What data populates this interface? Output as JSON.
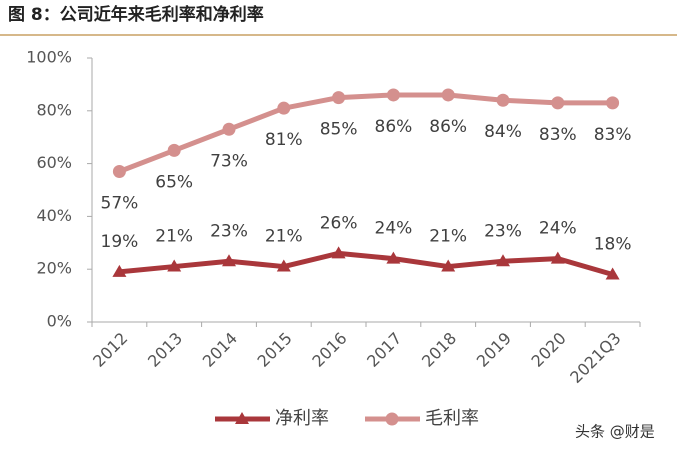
{
  "chart_data": {
    "type": "line",
    "title": "图 8：公司近年来毛利率和净利率",
    "categories": [
      "2012",
      "2013",
      "2014",
      "2015",
      "2016",
      "2017",
      "2018",
      "2019",
      "2020",
      "2021Q3"
    ],
    "series": [
      {
        "name": "净利率",
        "color": "#a9373b",
        "marker": "triangle",
        "values": [
          19,
          21,
          23,
          21,
          26,
          24,
          21,
          23,
          24,
          18
        ],
        "value_labels": [
          "19%",
          "21%",
          "23%",
          "21%",
          "26%",
          "24%",
          "21%",
          "23%",
          "24%",
          "18%"
        ]
      },
      {
        "name": "毛利率",
        "color": "#d4908e",
        "marker": "circle",
        "values": [
          57,
          65,
          73,
          81,
          85,
          86,
          86,
          84,
          83,
          83
        ],
        "value_labels": [
          "57%",
          "65%",
          "73%",
          "81%",
          "85%",
          "86%",
          "86%",
          "84%",
          "83%",
          "83%"
        ]
      }
    ],
    "ylim": [
      0,
      100
    ],
    "yticks": [
      {
        "value": 0,
        "label": "0%"
      },
      {
        "value": 20,
        "label": "20%"
      },
      {
        "value": 40,
        "label": "40%"
      },
      {
        "value": 60,
        "label": "60%"
      },
      {
        "value": 80,
        "label": "80%"
      },
      {
        "value": 100,
        "label": "100%"
      }
    ],
    "grid": false,
    "legend": "bottom",
    "watermark": "头条 @财是"
  }
}
